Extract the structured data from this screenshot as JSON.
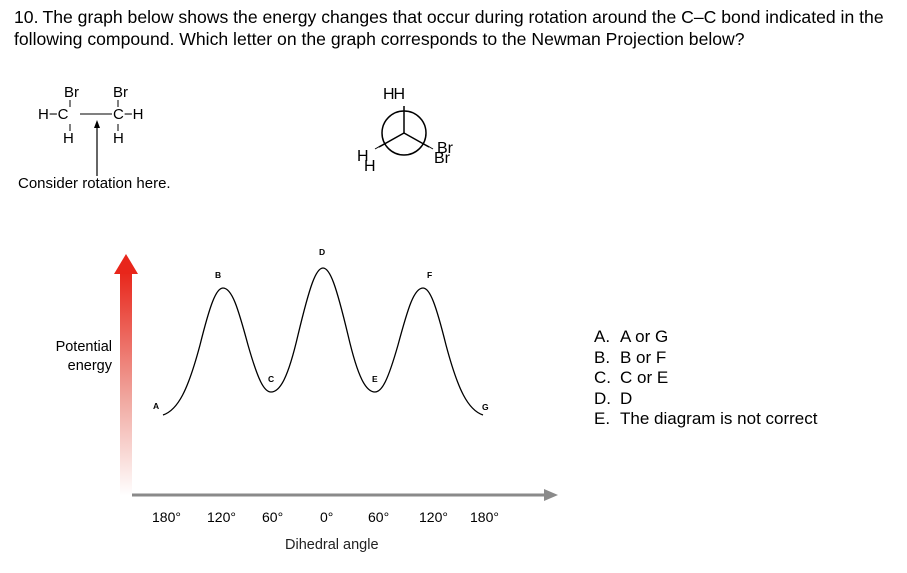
{
  "question": {
    "number": "10.",
    "text": "The graph below shows the energy changes that occur during rotation around the C–C bond indicated in the following compound. Which letter on the graph corresponds to the Newman Projection below?"
  },
  "compound": {
    "br_left": "Br",
    "br_right": "Br",
    "left_group": "H−C",
    "right_group": "C−H",
    "h_left": "H",
    "h_right": "H",
    "rotation_note": "Consider rotation here."
  },
  "newman": {
    "top_labels": "HH",
    "left_front": "H",
    "left_back": "H",
    "right_front": "Br",
    "right_back": "Br"
  },
  "graph": {
    "ylabel_line1": "Potential",
    "ylabel_line2": "energy",
    "xlabel": "Dihedral angle",
    "ticks": [
      "180°",
      "120°",
      "60°",
      "0°",
      "60°",
      "120°",
      "180°"
    ],
    "points": [
      "A",
      "B",
      "C",
      "D",
      "E",
      "F",
      "G"
    ],
    "arrow_color": "#e8261b",
    "axis_color": "#8a8a8a"
  },
  "choices": [
    {
      "letter": "A.",
      "text": "A or G"
    },
    {
      "letter": "B.",
      "text": "B or F"
    },
    {
      "letter": "C.",
      "text": "C or E"
    },
    {
      "letter": "D.",
      "text": "D"
    },
    {
      "letter": "E.",
      "text": "The diagram is not correct"
    }
  ]
}
